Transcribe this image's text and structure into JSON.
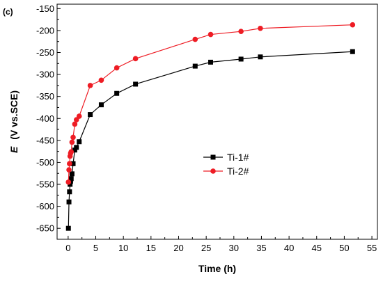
{
  "panel_label": "(c)",
  "chart_data": {
    "type": "line",
    "xlabel": "Time (h)",
    "ylabel_italic": "E",
    "ylabel_rest": "(V  vs.SCE)",
    "xlim": [
      -2,
      56
    ],
    "ylim": [
      -675,
      -140
    ],
    "xticks": [
      0,
      5,
      10,
      15,
      20,
      25,
      30,
      35,
      40,
      45,
      50,
      55
    ],
    "yticks": [
      -650,
      -600,
      -550,
      -500,
      -450,
      -400,
      -350,
      -300,
      -250,
      -200,
      -150
    ],
    "legend_position": "center-right",
    "grid": false,
    "series": [
      {
        "name": "Ti-1#",
        "color": "#000000",
        "marker": "square",
        "x": [
          0.05,
          0.15,
          0.25,
          0.35,
          0.45,
          0.55,
          0.7,
          0.9,
          1.2,
          1.5,
          2.0,
          4.0,
          6.0,
          8.8,
          12.2,
          23.0,
          25.8,
          31.3,
          34.8,
          51.5
        ],
        "y": [
          -650,
          -590,
          -567,
          -550,
          -543,
          -537,
          -526,
          -503,
          -472,
          -466,
          -453,
          -391,
          -369,
          -343,
          -322,
          -281,
          -272,
          -265,
          -260,
          -248
        ]
      },
      {
        "name": "Ti-2#",
        "color": "#ee1c24",
        "marker": "circle",
        "x": [
          0.05,
          0.15,
          0.25,
          0.35,
          0.45,
          0.55,
          0.7,
          0.9,
          1.2,
          1.5,
          2.0,
          4.0,
          6.0,
          8.8,
          12.2,
          23.0,
          25.8,
          31.3,
          34.8,
          51.5
        ],
        "y": [
          -545,
          -517,
          -503,
          -486,
          -479,
          -476,
          -454,
          -443,
          -413,
          -403,
          -395,
          -325,
          -313,
          -285,
          -264,
          -220,
          -209,
          -202,
          -195,
          -187
        ]
      }
    ]
  }
}
